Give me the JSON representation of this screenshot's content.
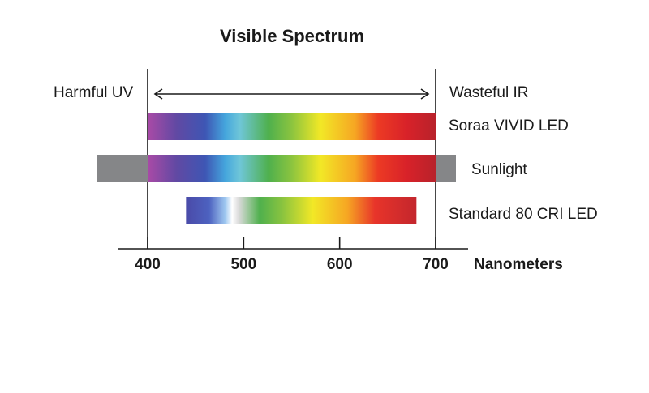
{
  "chart_data": {
    "type": "range_bar",
    "title": "Visible Spectrum",
    "xlabel": "Nanometers",
    "xlim": [
      400,
      700
    ],
    "x_ticks": [
      400,
      500,
      600,
      700
    ],
    "range_annotations": [
      {
        "label": "Harmful UV",
        "side": "left-of-400"
      },
      {
        "label": "Wasteful IR",
        "side": "right-of-700"
      }
    ],
    "arrow": {
      "from": 400,
      "to": 700
    },
    "series": [
      {
        "name": "Soraa VIVID LED",
        "start": 400,
        "end": 700
      },
      {
        "name": "Sunlight",
        "start": 400,
        "end": 700,
        "extends_beyond": [
          "uv",
          "ir"
        ]
      },
      {
        "name": "Standard 80 CRI LED",
        "start": 440,
        "end": 680
      }
    ]
  },
  "colors": {
    "text": "#1a1a1a",
    "axis": "#1a1a1a",
    "sunlight_grey": "#858688",
    "spectrum": [
      "#a94aa6",
      "#6149a3",
      "#3e56b4",
      "#45a6dd",
      "#6fc6d8",
      "#4fb04d",
      "#8bc43f",
      "#f2e826",
      "#f6a623",
      "#ec3a24",
      "#d82229",
      "#b8222b"
    ]
  }
}
